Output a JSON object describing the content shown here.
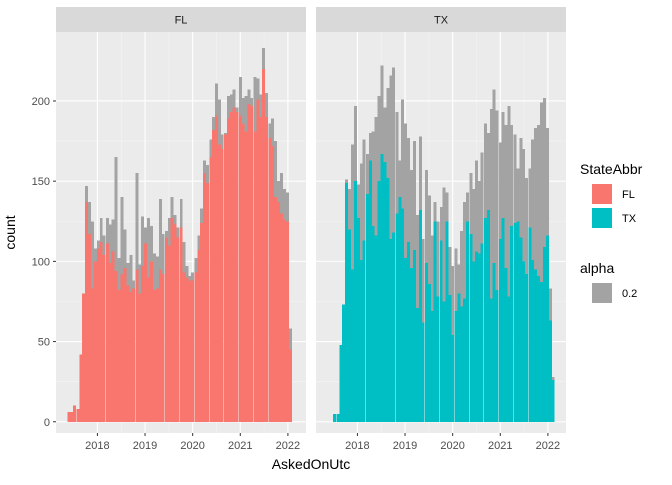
{
  "chart_data": {
    "type": "bar",
    "subtype": "faceted-histogram",
    "xlabel": "AskedOnUtc",
    "ylabel": "count",
    "x_ticks": [
      "2018",
      "2019",
      "2020",
      "2021",
      "2022"
    ],
    "y_ticks": [
      0,
      50,
      100,
      150,
      200
    ],
    "ylim": [
      -7,
      243
    ],
    "xlim": [
      2017.13,
      2022.38
    ],
    "grid": true,
    "legend_position": "right",
    "colors": {
      "FL": "#f8766d",
      "TX": "#00bfc4",
      "background_bars": "#a3a3a3"
    },
    "facets": [
      {
        "label": "FL",
        "bins": [
          {
            "x": 2017.4,
            "total": 6,
            "state": 6
          },
          {
            "x": 2017.46,
            "total": 6,
            "state": 6
          },
          {
            "x": 2017.52,
            "total": 10,
            "state": 10
          },
          {
            "x": 2017.59,
            "total": 8,
            "state": 8
          },
          {
            "x": 2017.65,
            "total": 42,
            "state": 42
          },
          {
            "x": 2017.71,
            "total": 80,
            "state": 80
          },
          {
            "x": 2017.77,
            "total": 147,
            "state": 137
          },
          {
            "x": 2017.83,
            "total": 137,
            "state": 117
          },
          {
            "x": 2017.9,
            "total": 125,
            "state": 83
          },
          {
            "x": 2017.96,
            "total": 108,
            "state": 100
          },
          {
            "x": 2018.02,
            "total": 113,
            "state": 108
          },
          {
            "x": 2018.08,
            "total": 127,
            "state": 112
          },
          {
            "x": 2018.14,
            "total": 116,
            "state": 104
          },
          {
            "x": 2018.21,
            "total": 127,
            "state": 111
          },
          {
            "x": 2018.27,
            "total": 123,
            "state": 99
          },
          {
            "x": 2018.33,
            "total": 126,
            "state": 106
          },
          {
            "x": 2018.39,
            "total": 165,
            "state": 94
          },
          {
            "x": 2018.45,
            "total": 102,
            "state": 82
          },
          {
            "x": 2018.52,
            "total": 140,
            "state": 92
          },
          {
            "x": 2018.58,
            "total": 120,
            "state": 96
          },
          {
            "x": 2018.64,
            "total": 99,
            "state": 85
          },
          {
            "x": 2018.7,
            "total": 104,
            "state": 81
          },
          {
            "x": 2018.76,
            "total": 88,
            "state": 83
          },
          {
            "x": 2018.83,
            "total": 155,
            "state": 95
          },
          {
            "x": 2018.89,
            "total": 98,
            "state": 80
          },
          {
            "x": 2018.95,
            "total": 128,
            "state": 97
          },
          {
            "x": 2019.01,
            "total": 121,
            "state": 111
          },
          {
            "x": 2019.07,
            "total": 127,
            "state": 90
          },
          {
            "x": 2019.14,
            "total": 122,
            "state": 100
          },
          {
            "x": 2019.2,
            "total": 105,
            "state": 82
          },
          {
            "x": 2019.26,
            "total": 103,
            "state": 83
          },
          {
            "x": 2019.32,
            "total": 139,
            "state": 95
          },
          {
            "x": 2019.38,
            "total": 117,
            "state": 92
          },
          {
            "x": 2019.45,
            "total": 119,
            "state": 115
          },
          {
            "x": 2019.51,
            "total": 127,
            "state": 110
          },
          {
            "x": 2019.57,
            "total": 140,
            "state": 127
          },
          {
            "x": 2019.63,
            "total": 129,
            "state": 123
          },
          {
            "x": 2019.69,
            "total": 121,
            "state": 115
          },
          {
            "x": 2019.76,
            "total": 139,
            "state": 121
          },
          {
            "x": 2019.82,
            "total": 112,
            "state": 93
          },
          {
            "x": 2019.88,
            "total": 97,
            "state": 90
          },
          {
            "x": 2019.94,
            "total": 91,
            "state": 88
          },
          {
            "x": 2020.0,
            "total": 93,
            "state": 88
          },
          {
            "x": 2020.07,
            "total": 102,
            "state": 93
          },
          {
            "x": 2020.13,
            "total": 116,
            "state": 107
          },
          {
            "x": 2020.19,
            "total": 133,
            "state": 124
          },
          {
            "x": 2020.25,
            "total": 163,
            "state": 155
          },
          {
            "x": 2020.31,
            "total": 160,
            "state": 149
          },
          {
            "x": 2020.38,
            "total": 176,
            "state": 165
          },
          {
            "x": 2020.44,
            "total": 190,
            "state": 182
          },
          {
            "x": 2020.5,
            "total": 211,
            "state": 191
          },
          {
            "x": 2020.56,
            "total": 201,
            "state": 173
          },
          {
            "x": 2020.62,
            "total": 179,
            "state": 170
          },
          {
            "x": 2020.69,
            "total": 180,
            "state": 179
          },
          {
            "x": 2020.75,
            "total": 203,
            "state": 189
          },
          {
            "x": 2020.81,
            "total": 204,
            "state": 193
          },
          {
            "x": 2020.87,
            "total": 207,
            "state": 196
          },
          {
            "x": 2020.93,
            "total": 196,
            "state": 193
          },
          {
            "x": 2021.0,
            "total": 215,
            "state": 191
          },
          {
            "x": 2021.06,
            "total": 202,
            "state": 186
          },
          {
            "x": 2021.12,
            "total": 203,
            "state": 181
          },
          {
            "x": 2021.18,
            "total": 207,
            "state": 198
          },
          {
            "x": 2021.24,
            "total": 202,
            "state": 197
          },
          {
            "x": 2021.31,
            "total": 215,
            "state": 181
          },
          {
            "x": 2021.37,
            "total": 214,
            "state": 201
          },
          {
            "x": 2021.43,
            "total": 204,
            "state": 190
          },
          {
            "x": 2021.49,
            "total": 233,
            "state": 220
          },
          {
            "x": 2021.55,
            "total": 205,
            "state": 190
          },
          {
            "x": 2021.62,
            "total": 186,
            "state": 177
          },
          {
            "x": 2021.68,
            "total": 189,
            "state": 172
          },
          {
            "x": 2021.74,
            "total": 175,
            "state": 140
          },
          {
            "x": 2021.8,
            "total": 150,
            "state": 137
          },
          {
            "x": 2021.87,
            "total": 155,
            "state": 130
          },
          {
            "x": 2021.93,
            "total": 145,
            "state": 126
          },
          {
            "x": 2021.99,
            "total": 143,
            "state": 125
          },
          {
            "x": 2022.05,
            "total": 58,
            "state": 45
          }
        ]
      },
      {
        "label": "TX",
        "bins": [
          {
            "x": 2017.52,
            "total": 5,
            "state": 5
          },
          {
            "x": 2017.59,
            "total": 5,
            "state": 5
          },
          {
            "x": 2017.65,
            "total": 48,
            "state": 48
          },
          {
            "x": 2017.71,
            "total": 73,
            "state": 73
          },
          {
            "x": 2017.77,
            "total": 151,
            "state": 149
          },
          {
            "x": 2017.83,
            "total": 145,
            "state": 120
          },
          {
            "x": 2017.9,
            "total": 173,
            "state": 95
          },
          {
            "x": 2017.96,
            "total": 197,
            "state": 150
          },
          {
            "x": 2018.02,
            "total": 148,
            "state": 127
          },
          {
            "x": 2018.08,
            "total": 161,
            "state": 101
          },
          {
            "x": 2018.14,
            "total": 176,
            "state": 113
          },
          {
            "x": 2018.21,
            "total": 167,
            "state": 142
          },
          {
            "x": 2018.27,
            "total": 180,
            "state": 163
          },
          {
            "x": 2018.33,
            "total": 181,
            "state": 122
          },
          {
            "x": 2018.39,
            "total": 190,
            "state": 116
          },
          {
            "x": 2018.45,
            "total": 203,
            "state": 150
          },
          {
            "x": 2018.52,
            "total": 222,
            "state": 167
          },
          {
            "x": 2018.58,
            "total": 196,
            "state": 162
          },
          {
            "x": 2018.64,
            "total": 208,
            "state": 152
          },
          {
            "x": 2018.7,
            "total": 216,
            "state": 114
          },
          {
            "x": 2018.76,
            "total": 221,
            "state": 118
          },
          {
            "x": 2018.83,
            "total": 193,
            "state": 130
          },
          {
            "x": 2018.89,
            "total": 163,
            "state": 140
          },
          {
            "x": 2018.95,
            "total": 201,
            "state": 133
          },
          {
            "x": 2019.01,
            "total": 186,
            "state": 102
          },
          {
            "x": 2019.07,
            "total": 177,
            "state": 112
          },
          {
            "x": 2019.14,
            "total": 157,
            "state": 96
          },
          {
            "x": 2019.2,
            "total": 175,
            "state": 107
          },
          {
            "x": 2019.26,
            "total": 129,
            "state": 71
          },
          {
            "x": 2019.32,
            "total": 178,
            "state": 132
          },
          {
            "x": 2019.38,
            "total": 114,
            "state": 62
          },
          {
            "x": 2019.45,
            "total": 157,
            "state": 99
          },
          {
            "x": 2019.51,
            "total": 141,
            "state": 86
          },
          {
            "x": 2019.57,
            "total": 116,
            "state": 69
          },
          {
            "x": 2019.63,
            "total": 137,
            "state": 125
          },
          {
            "x": 2019.69,
            "total": 125,
            "state": 78
          },
          {
            "x": 2019.76,
            "total": 134,
            "state": 113
          },
          {
            "x": 2019.82,
            "total": 146,
            "state": 75
          },
          {
            "x": 2019.88,
            "total": 143,
            "state": 125
          },
          {
            "x": 2019.94,
            "total": 109,
            "state": 79
          },
          {
            "x": 2020.0,
            "total": 97,
            "state": 54
          },
          {
            "x": 2020.07,
            "total": 108,
            "state": 69
          },
          {
            "x": 2020.13,
            "total": 98,
            "state": 80
          },
          {
            "x": 2020.19,
            "total": 119,
            "state": 72
          },
          {
            "x": 2020.25,
            "total": 137,
            "state": 77
          },
          {
            "x": 2020.31,
            "total": 143,
            "state": 125
          },
          {
            "x": 2020.38,
            "total": 155,
            "state": 117
          },
          {
            "x": 2020.44,
            "total": 145,
            "state": 100
          },
          {
            "x": 2020.5,
            "total": 163,
            "state": 106
          },
          {
            "x": 2020.56,
            "total": 150,
            "state": 105
          },
          {
            "x": 2020.62,
            "total": 168,
            "state": 111
          },
          {
            "x": 2020.69,
            "total": 186,
            "state": 127
          },
          {
            "x": 2020.75,
            "total": 180,
            "state": 132
          },
          {
            "x": 2020.81,
            "total": 195,
            "state": 77
          },
          {
            "x": 2020.87,
            "total": 207,
            "state": 99
          },
          {
            "x": 2020.93,
            "total": 194,
            "state": 82
          },
          {
            "x": 2021.0,
            "total": 174,
            "state": 114
          },
          {
            "x": 2021.06,
            "total": 193,
            "state": 127
          },
          {
            "x": 2021.12,
            "total": 185,
            "state": 96
          },
          {
            "x": 2021.18,
            "total": 197,
            "state": 78
          },
          {
            "x": 2021.24,
            "total": 185,
            "state": 122
          },
          {
            "x": 2021.31,
            "total": 179,
            "state": 124
          },
          {
            "x": 2021.37,
            "total": 158,
            "state": 125
          },
          {
            "x": 2021.43,
            "total": 177,
            "state": 115
          },
          {
            "x": 2021.49,
            "total": 170,
            "state": 100
          },
          {
            "x": 2021.55,
            "total": 152,
            "state": 92
          },
          {
            "x": 2021.62,
            "total": 158,
            "state": 121
          },
          {
            "x": 2021.68,
            "total": 176,
            "state": 101
          },
          {
            "x": 2021.74,
            "total": 183,
            "state": 95
          },
          {
            "x": 2021.8,
            "total": 185,
            "state": 91
          },
          {
            "x": 2021.87,
            "total": 199,
            "state": 87
          },
          {
            "x": 2021.93,
            "total": 202,
            "state": 109
          },
          {
            "x": 2021.99,
            "total": 183,
            "state": 116
          },
          {
            "x": 2022.05,
            "total": 83,
            "state": 63
          },
          {
            "x": 2022.11,
            "total": 28,
            "state": 26
          }
        ]
      }
    ],
    "legend": {
      "fill_title": "StateAbbr",
      "fill_entries": [
        {
          "label": "FL",
          "color": "#f8766d"
        },
        {
          "label": "TX",
          "color": "#00bfc4"
        }
      ],
      "alpha_title": "alpha",
      "alpha_entries": [
        {
          "label": "0.2",
          "color": "#a3a3a3"
        }
      ]
    }
  }
}
